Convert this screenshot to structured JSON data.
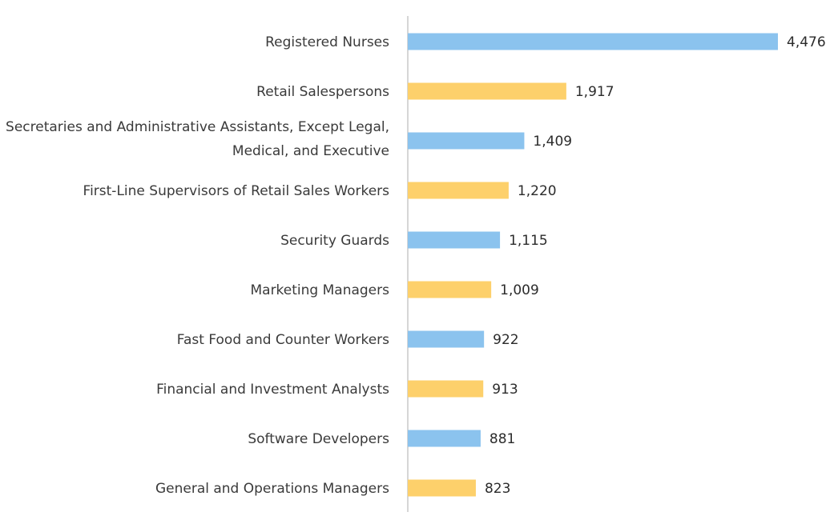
{
  "chart_data": {
    "type": "bar",
    "orientation": "horizontal",
    "categories": [
      [
        "Registered Nurses"
      ],
      [
        "Retail Salespersons"
      ],
      [
        "Secretaries and Administrative Assistants, Except Legal,",
        "Medical, and Executive"
      ],
      [
        "First-Line Supervisors of Retail Sales Workers"
      ],
      [
        "Security Guards"
      ],
      [
        "Marketing Managers"
      ],
      [
        "Fast Food and Counter Workers"
      ],
      [
        "Financial and Investment Analysts"
      ],
      [
        "Software Developers"
      ],
      [
        "General and Operations Managers"
      ]
    ],
    "values": [
      4476,
      1917,
      1409,
      1220,
      1115,
      1009,
      922,
      913,
      881,
      823
    ],
    "value_labels": [
      "4,476",
      "1,917",
      "1,409",
      "1,220",
      "1,115",
      "1,009",
      "922",
      "913",
      "881",
      "823"
    ],
    "bar_colors": [
      "#8bc3ee",
      "#fdd06b",
      "#8bc3ee",
      "#fdd06b",
      "#8bc3ee",
      "#fdd06b",
      "#8bc3ee",
      "#fdd06b",
      "#8bc3ee",
      "#fdd06b"
    ],
    "axis_color": "#c8c8c8",
    "xlim": [
      0,
      4476
    ],
    "title": "",
    "xlabel": "",
    "ylabel": "",
    "grid": false,
    "legend": "none"
  }
}
